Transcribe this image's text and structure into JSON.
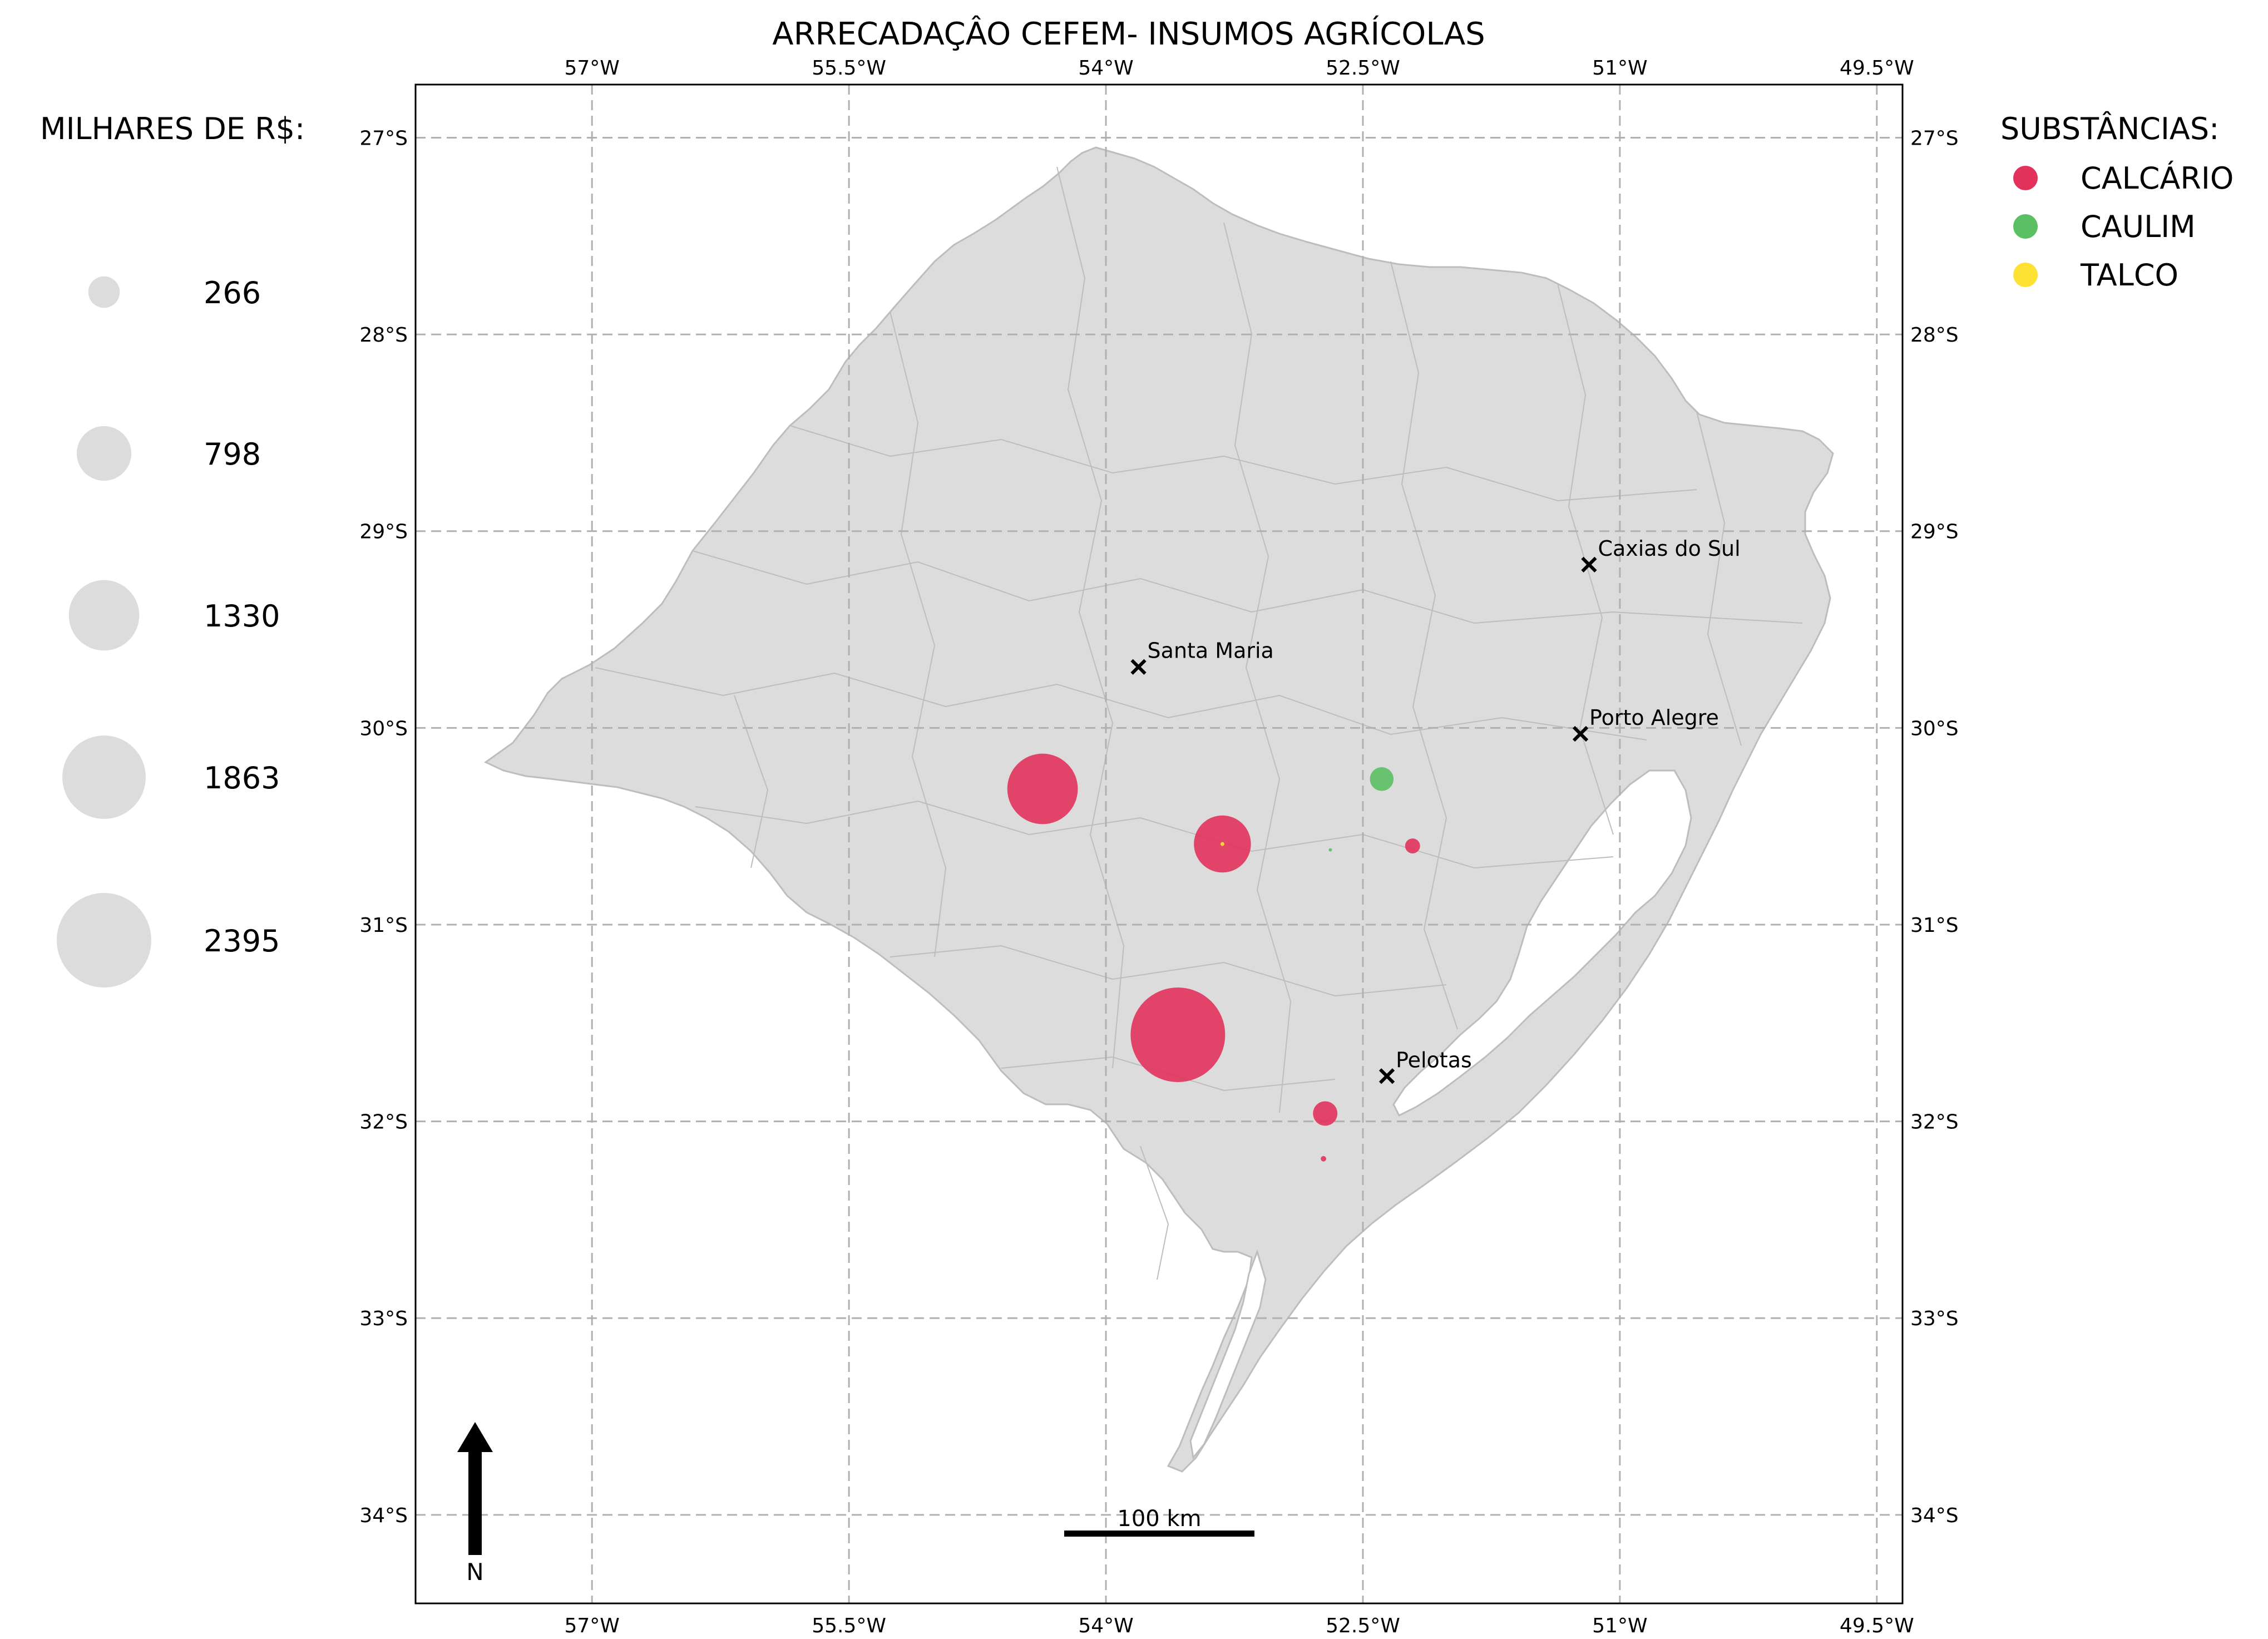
{
  "title": "ARRECADAÇÂO CEFEM- INSUMOS AGRÍCOLAS",
  "lon_ticks": [
    {
      "value": -57.0,
      "label": "57°W"
    },
    {
      "value": -55.5,
      "label": "55.5°W"
    },
    {
      "value": -54.0,
      "label": "54°W"
    },
    {
      "value": -52.5,
      "label": "52.5°W"
    },
    {
      "value": -51.0,
      "label": "51°W"
    },
    {
      "value": -49.5,
      "label": "49.5°W"
    }
  ],
  "lat_ticks": [
    {
      "value": -27,
      "label": "27°S"
    },
    {
      "value": -28,
      "label": "28°S"
    },
    {
      "value": -29,
      "label": "29°S"
    },
    {
      "value": -30,
      "label": "30°S"
    },
    {
      "value": -31,
      "label": "31°S"
    },
    {
      "value": -32,
      "label": "32°S"
    },
    {
      "value": -33,
      "label": "33°S"
    },
    {
      "value": -34,
      "label": "34°S"
    }
  ],
  "extent": {
    "lon_min": -58.03,
    "lon_max": -49.35,
    "lat_min": -34.45,
    "lat_max": -26.73
  },
  "size_legend": {
    "title": "MILHARES DE R$:",
    "items": [
      {
        "value": 266,
        "label": "266"
      },
      {
        "value": 798,
        "label": "798"
      },
      {
        "value": 1330,
        "label": "1330"
      },
      {
        "value": 1863,
        "label": "1863"
      },
      {
        "value": 2395,
        "label": "2395"
      }
    ]
  },
  "substance_legend": {
    "title": "SUBSTÂNCIAS:",
    "items": [
      {
        "name": "CALCÁRIO",
        "color": "#e2325c"
      },
      {
        "name": "CAULIM",
        "color": "#5bbf63"
      },
      {
        "name": "TALCO",
        "color": "#fde233"
      }
    ]
  },
  "cities": [
    {
      "name": "Caxias do Sul",
      "lon": -51.18,
      "lat": -29.17
    },
    {
      "name": "Santa Maria",
      "lon": -53.81,
      "lat": -29.69
    },
    {
      "name": "Porto Alegre",
      "lon": -51.23,
      "lat": -30.03
    },
    {
      "name": "Pelotas",
      "lon": -52.36,
      "lat": -31.77
    }
  ],
  "points": [
    {
      "substance": "CALCÁRIO",
      "lon": -53.58,
      "lat": -31.56,
      "value": 2395
    },
    {
      "substance": "CALCÁRIO",
      "lon": -54.37,
      "lat": -30.31,
      "value": 1330
    },
    {
      "substance": "CALCÁRIO",
      "lon": -53.32,
      "lat": -30.59,
      "value": 870
    },
    {
      "substance": "CALCÁRIO",
      "lon": -52.72,
      "lat": -31.96,
      "value": 160
    },
    {
      "substance": "CALCÁRIO",
      "lon": -52.21,
      "lat": -30.6,
      "value": 60
    },
    {
      "substance": "CALCÁRIO",
      "lon": -52.73,
      "lat": -32.19,
      "value": 8
    },
    {
      "substance": "CAULIM",
      "lon": -52.39,
      "lat": -30.26,
      "value": 150
    },
    {
      "substance": "CAULIM",
      "lon": -52.69,
      "lat": -30.62,
      "value": 3
    },
    {
      "substance": "TALCO",
      "lon": -53.32,
      "lat": -30.59,
      "value": 4
    }
  ],
  "north_arrow": {
    "label": "N"
  },
  "scale_bar": {
    "label": "100 km"
  }
}
